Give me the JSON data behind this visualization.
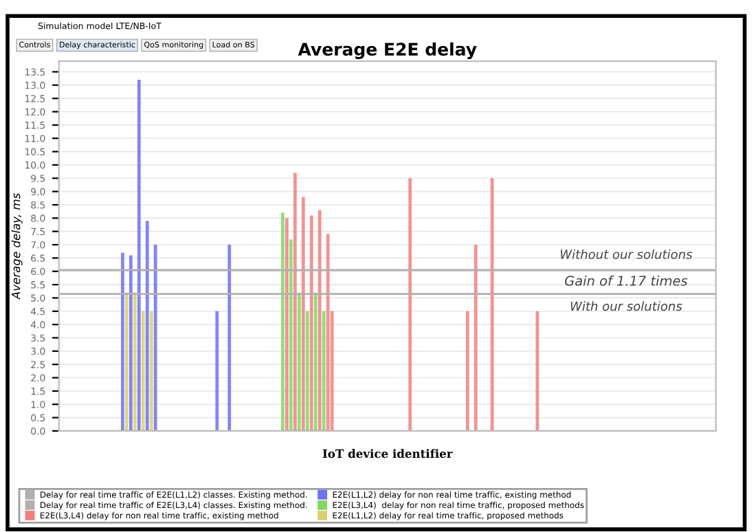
{
  "chart_data": {
    "type": "bar",
    "title": "Average E2E delay",
    "xlabel": "IoT device identifier",
    "ylabel": "Average delay, ms",
    "categories": [
      null,
      null,
      null,
      null,
      null,
      null,
      null,
      null,
      null,
      null,
      null,
      null,
      null,
      null,
      null,
      null,
      null,
      null,
      null,
      null,
      null,
      null,
      null,
      null,
      null,
      null,
      null,
      null,
      null,
      null,
      null,
      null,
      null,
      null,
      null,
      null,
      null,
      null,
      null,
      null,
      null,
      null,
      null,
      null,
      null,
      null,
      null,
      null,
      null,
      null,
      null,
      null,
      null,
      null,
      null,
      null,
      null,
      null,
      null,
      null,
      null,
      null,
      null,
      null,
      null,
      null,
      null,
      null,
      null,
      null,
      null,
      null,
      null,
      null,
      null,
      null,
      null,
      null,
      null,
      null,
      null,
      null,
      null,
      null,
      null,
      null,
      null,
      null,
      null,
      null,
      null,
      null,
      null,
      null,
      null,
      null,
      null,
      null,
      null,
      null,
      null,
      null,
      null,
      null,
      null,
      null,
      null,
      null,
      null,
      null,
      null,
      null,
      null,
      null,
      null,
      null,
      null,
      null,
      null,
      null,
      null,
      null,
      null,
      null,
      null,
      null,
      null,
      null,
      null,
      null,
      null,
      null,
      null,
      null,
      null,
      null,
      null,
      null,
      null,
      null,
      null,
      null,
      null,
      null,
      null,
      null,
      null,
      null,
      null,
      null,
      null,
      null,
      null,
      null,
      null,
      null,
      null,
      null,
      null,
      null
    ],
    "series": [
      {
        "name": "E2E(L3,L4) delay for non real time traffic, existing method",
        "color": "#f08080",
        "values": [
          null,
          null,
          null,
          null,
          null,
          null,
          null,
          null,
          null,
          null,
          null,
          null,
          null,
          null,
          null,
          null,
          null,
          null,
          null,
          null,
          null,
          null,
          null,
          null,
          null,
          null,
          null,
          null,
          null,
          null,
          null,
          null,
          null,
          null,
          null,
          null,
          null,
          null,
          null,
          null,
          null,
          null,
          null,
          null,
          null,
          null,
          null,
          null,
          null,
          null,
          null,
          null,
          null,
          null,
          null,
          8.0,
          null,
          9.7,
          null,
          8.8,
          null,
          8.1,
          null,
          8.3,
          null,
          7.4,
          4.5,
          null,
          null,
          null,
          null,
          null,
          null,
          null,
          null,
          null,
          null,
          null,
          null,
          null,
          null,
          null,
          null,
          null,
          null,
          9.5,
          null,
          null,
          null,
          null,
          null,
          null,
          null,
          null,
          null,
          null,
          null,
          null,
          null,
          4.5,
          null,
          7.0,
          null,
          null,
          null,
          9.5,
          null,
          null,
          null,
          null,
          null,
          null,
          null,
          null,
          null,
          null,
          4.5,
          null,
          null,
          null,
          null,
          null,
          null,
          null,
          null,
          null,
          null,
          null,
          null,
          null,
          null,
          null,
          null,
          null,
          null,
          null,
          null,
          null,
          null,
          null,
          null,
          null,
          null,
          null,
          null,
          null,
          null,
          null,
          null,
          null,
          null,
          null,
          null,
          null,
          null,
          null,
          null,
          null,
          null,
          null
        ]
      },
      {
        "name": "E2E(L1,L2) delay for non real time traffic, existing method",
        "color": "#7070f0",
        "values": [
          null,
          null,
          null,
          null,
          null,
          null,
          null,
          null,
          null,
          null,
          null,
          null,
          null,
          null,
          null,
          6.7,
          null,
          6.6,
          null,
          13.2,
          null,
          7.9,
          null,
          7.0,
          null,
          null,
          null,
          null,
          null,
          null,
          null,
          null,
          null,
          null,
          null,
          null,
          null,
          null,
          4.5,
          null,
          null,
          7.0,
          null,
          null,
          null,
          null,
          null,
          null,
          null,
          null,
          null,
          null,
          null,
          null,
          null,
          null,
          null,
          null,
          null,
          null,
          null,
          null,
          null,
          null,
          null,
          null,
          null,
          null,
          null,
          null,
          null,
          null,
          null,
          null,
          null,
          null,
          null,
          null,
          null,
          null,
          null,
          null,
          null,
          null,
          null,
          null,
          null,
          null,
          null,
          null,
          null,
          null,
          null,
          null,
          null,
          null,
          null,
          null,
          null,
          null,
          null,
          null,
          null,
          null,
          null,
          null,
          null,
          null,
          null,
          null,
          null,
          null,
          null,
          null,
          null,
          null,
          null,
          null,
          null,
          null,
          null,
          null,
          null,
          null,
          null,
          null,
          null,
          null,
          null,
          null,
          null,
          null,
          null,
          null,
          null,
          null,
          null,
          null,
          null,
          null,
          null,
          null,
          null,
          null,
          null,
          null,
          null,
          null,
          null,
          null,
          null,
          null,
          null,
          null,
          null,
          null,
          null,
          null,
          null,
          null
        ]
      },
      {
        "name": "E2E(L3,L4)  delay for non real time traffic, proposed methods",
        "color": "#80d860",
        "values": [
          null,
          null,
          null,
          null,
          null,
          null,
          null,
          null,
          null,
          null,
          null,
          null,
          null,
          null,
          null,
          null,
          null,
          null,
          null,
          null,
          null,
          null,
          null,
          null,
          null,
          null,
          null,
          null,
          null,
          null,
          null,
          null,
          null,
          null,
          null,
          null,
          null,
          null,
          null,
          null,
          null,
          null,
          null,
          null,
          null,
          null,
          null,
          null,
          null,
          null,
          null,
          null,
          null,
          null,
          8.2,
          null,
          7.2,
          null,
          5.2,
          null,
          4.5,
          null,
          5.2,
          null,
          4.5,
          null,
          null,
          null,
          null,
          null,
          null,
          null,
          null,
          null,
          null,
          null,
          null,
          null,
          null,
          null,
          null,
          null,
          null,
          null,
          null,
          null,
          null,
          null,
          null,
          null,
          null,
          null,
          null,
          null,
          null,
          null,
          null,
          null,
          null,
          null,
          null,
          null,
          null,
          null,
          null,
          null,
          null,
          null,
          null,
          null,
          null,
          null,
          null,
          null,
          null,
          null,
          null,
          null,
          null,
          null,
          null,
          null,
          null,
          null,
          null,
          null,
          null,
          null,
          null,
          null,
          null,
          null,
          null,
          null,
          null,
          null,
          null,
          null,
          null,
          null,
          null,
          null,
          null,
          null,
          null,
          null,
          null,
          null,
          null,
          null,
          null,
          null,
          null,
          null,
          null,
          null,
          null,
          null,
          null,
          null
        ]
      },
      {
        "name": "E2E(L1,L2) delay for real time traffic, proposed methods",
        "color": "#d8d070",
        "values": [
          null,
          null,
          null,
          null,
          null,
          null,
          null,
          null,
          null,
          null,
          null,
          null,
          null,
          null,
          null,
          null,
          5.2,
          null,
          5.2,
          null,
          4.5,
          null,
          4.5,
          null,
          null,
          null,
          null,
          null,
          null,
          null,
          null,
          null,
          null,
          null,
          null,
          null,
          null,
          null,
          null,
          null,
          null,
          null,
          null,
          null,
          null,
          null,
          null,
          null,
          null,
          null,
          null,
          null,
          null,
          null,
          null,
          null,
          null,
          null,
          null,
          null,
          null,
          null,
          null,
          null,
          null,
          null,
          null,
          null,
          null,
          null,
          null,
          null,
          null,
          null,
          null,
          null,
          null,
          null,
          null,
          null,
          null,
          null,
          null,
          null,
          null,
          null,
          null,
          null,
          null,
          null,
          null,
          null,
          null,
          null,
          null,
          null,
          null,
          null,
          null,
          null,
          null,
          null,
          null,
          null,
          null,
          null,
          null,
          null,
          null,
          null,
          null,
          null,
          null,
          null,
          null,
          null,
          null,
          null,
          null,
          null,
          null,
          null,
          null,
          null,
          null,
          null,
          null,
          null,
          null,
          null,
          null,
          null,
          null,
          null,
          null,
          null,
          null,
          null,
          null,
          null,
          null,
          null,
          null,
          null,
          null,
          null,
          null,
          null,
          null,
          null,
          null,
          null,
          null,
          null,
          null,
          null,
          null,
          null,
          null,
          null
        ]
      }
    ],
    "ref_lines": [
      {
        "axis": "y",
        "value": 6.05,
        "label": "Delay for real time traffic of E2E(L1,L2) classes. Existing method.",
        "color": "#b0b0b0"
      },
      {
        "axis": "y",
        "value": 5.15,
        "label": "Delay for real time traffic of E2E(L3,L4) classes. Existing method.",
        "color": "#b0b0b0"
      }
    ],
    "annotations": [
      "Simulation model LTE/NB-IoT",
      "Controls",
      "Delay characteristic",
      "QoS monitoring",
      "Load on BS",
      {
        "text": "Without our solutions",
        "y": 6.05
      },
      "Gain of 1.17 times",
      {
        "text": "With our solutions",
        "y": 5.15
      }
    ],
    "ylim": [
      0,
      13.9
    ],
    "yticks": [
      {
        "value": 0,
        "label": "0.0"
      },
      0.5,
      {
        "value": 1,
        "label": "1.0"
      },
      1.5,
      {
        "value": 2,
        "label": "2.0"
      },
      2.5,
      {
        "value": 3,
        "label": "3.0"
      },
      3.5,
      {
        "value": 4,
        "label": "4.0"
      },
      4.5,
      {
        "value": 5,
        "label": "5.0"
      },
      5.5,
      {
        "value": 6,
        "label": "6.0"
      },
      6.5,
      {
        "value": 7,
        "label": "7.0"
      },
      7.5,
      {
        "value": 8,
        "label": "8.0"
      },
      8.5,
      {
        "value": 9,
        "label": "9.0"
      },
      9.5,
      {
        "value": 10,
        "label": "10.0"
      },
      10.5,
      {
        "value": 11,
        "label": "11.0"
      },
      11.5,
      {
        "value": 12,
        "label": "12.0"
      },
      12.5,
      {
        "value": 13,
        "label": "13.0"
      },
      13.5
    ],
    "grid": "y",
    "legend": "bottom"
  }
}
